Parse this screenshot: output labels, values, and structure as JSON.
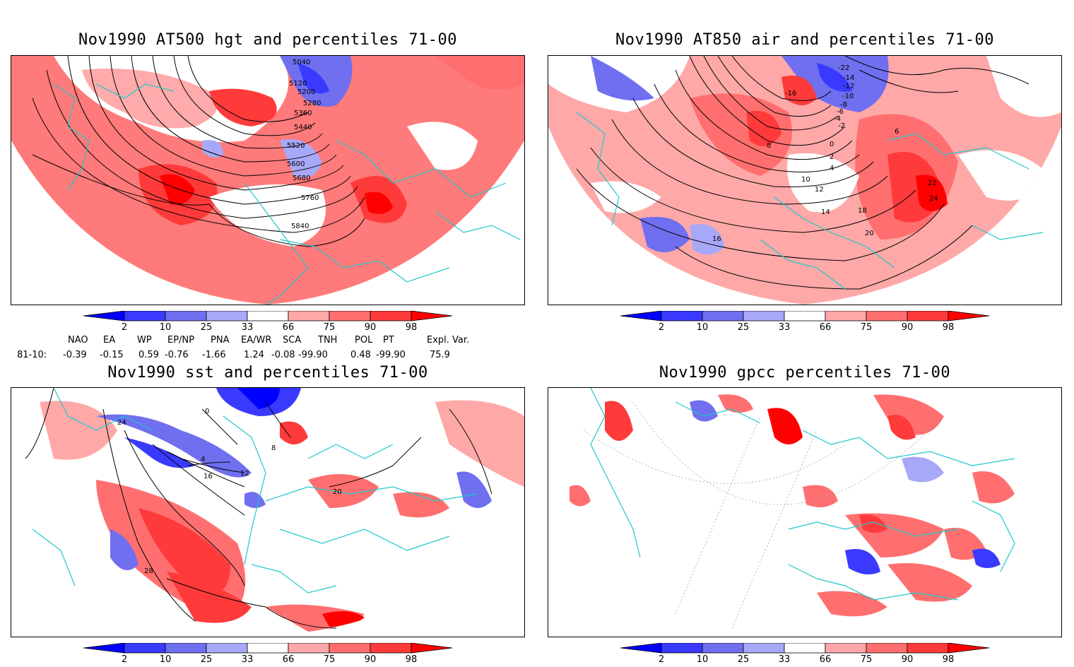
{
  "panels": [
    {
      "title": "Nov1990 AT500 hgt and percentiles 71-00",
      "contour_labels": [
        "5040",
        "5120",
        "5200",
        "5280",
        "5360",
        "5440",
        "5520",
        "5600",
        "5680",
        "5760",
        "5840"
      ]
    },
    {
      "title": "Nov1990 AT850 air and percentiles 71-00",
      "contour_labels": [
        "-22",
        "-14",
        "-12",
        "-16",
        "-10",
        "-8",
        "-6",
        "-4",
        "-2",
        "0",
        "2",
        "4",
        "6",
        "8",
        "10",
        "12",
        "14",
        "16",
        "18",
        "20",
        "22",
        "24"
      ]
    },
    {
      "title": "Nov1990 sst and percentiles 71-00",
      "contour_labels": [
        "0",
        "4",
        "8",
        "12",
        "16",
        "20",
        "24",
        "28"
      ]
    },
    {
      "title": "Nov1990 gpcc percentiles 71-00",
      "contour_labels": []
    }
  ],
  "colorbar": {
    "ticks": [
      "2",
      "10",
      "25",
      "33",
      "66",
      "75",
      "90",
      "98"
    ],
    "colors": [
      "#0000ff",
      "#3a3aff",
      "#6f6fef",
      "#a8a8f8",
      "#ffffff",
      "#ffa8a8",
      "#ff6f6f",
      "#ff3a3a",
      "#ff0000"
    ]
  },
  "teleconnections": {
    "row_label": "81-10:",
    "headers": [
      "NAO",
      "EA",
      "WP",
      "EP/NP",
      "PNA",
      "EA/WR",
      "SCA",
      "TNH",
      "POL",
      "PT",
      "Expl. Var."
    ],
    "values": [
      "-0.39",
      "-0.15",
      "0.59",
      "-0.76",
      "-1.66",
      "1.24",
      "-0.08",
      "-99.90",
      "0.48",
      "-99.90",
      "75.9"
    ]
  },
  "colors": {
    "coast": "#1ec8c8",
    "above": "#ff5555",
    "below": "#5a5af0",
    "frame": "#000000"
  }
}
